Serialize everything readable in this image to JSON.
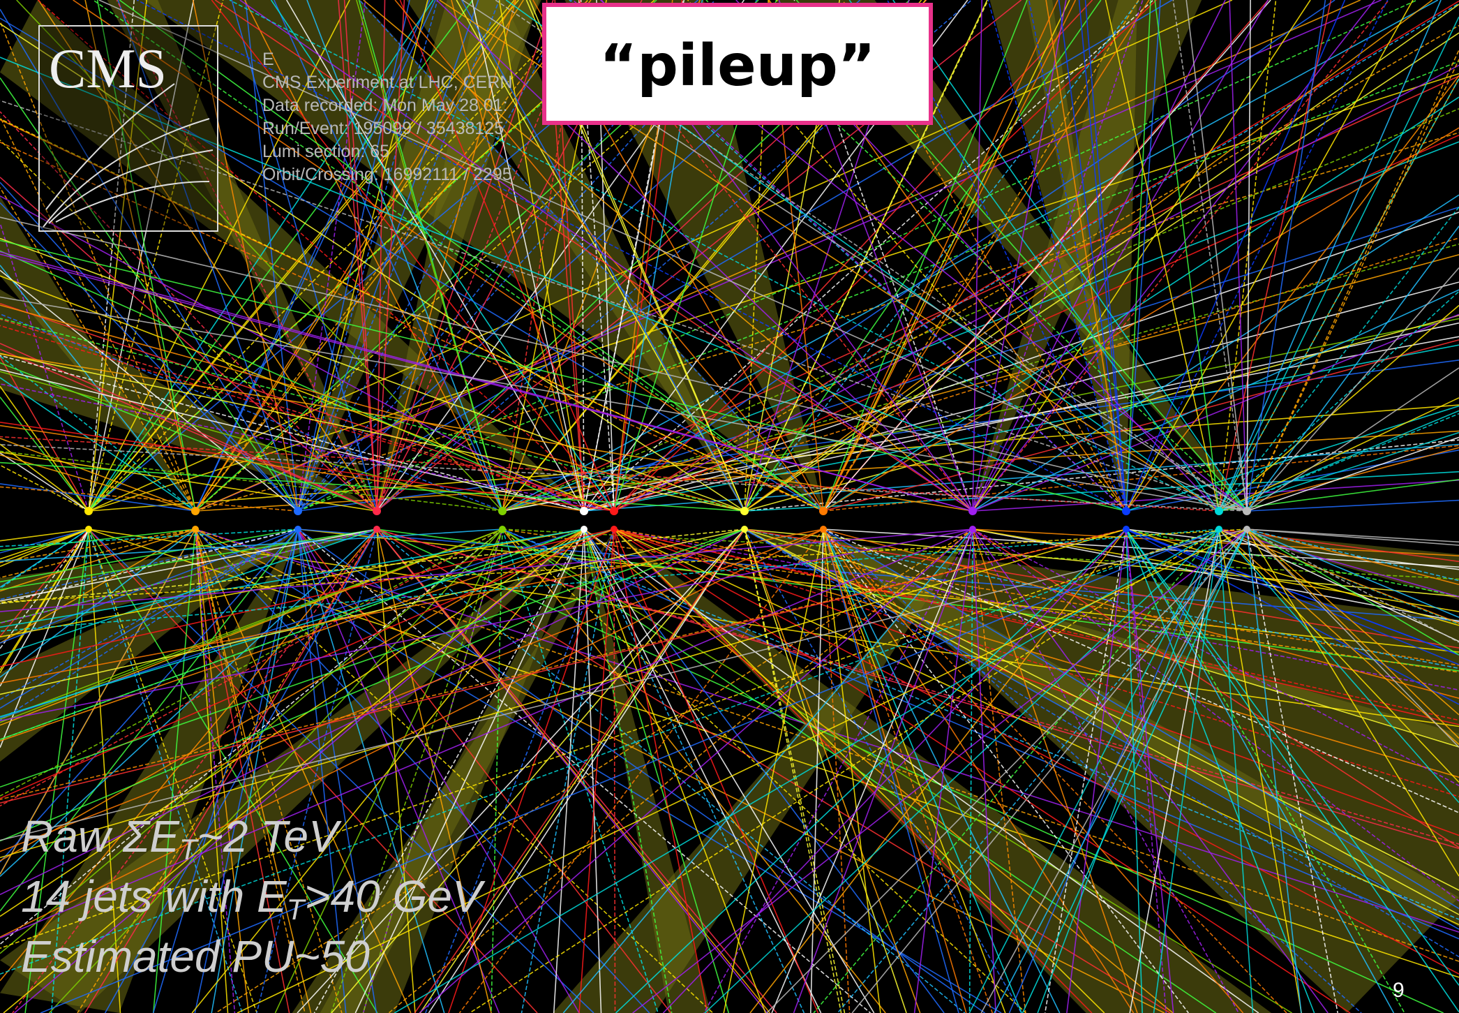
{
  "slide": {
    "callout": "“pileup”",
    "logo": "CMS",
    "event_info": [
      "E",
      "CMS Experiment at LHC, CERN",
      "Data recorded: Mon May 28 01:",
      "Run/Event: 195099 / 35438125",
      "Lumi section: 65",
      "Orbit/Crossing: 16992111 / 2295"
    ],
    "summary": [
      {
        "parts": [
          "Raw ΣE",
          "T",
          "~2 TeV"
        ]
      },
      {
        "parts": [
          "14 jets with E",
          "T",
          ">40 GeV"
        ]
      },
      {
        "parts": [
          "Estimated  PU~50"
        ]
      }
    ],
    "page_number": "9"
  }
}
